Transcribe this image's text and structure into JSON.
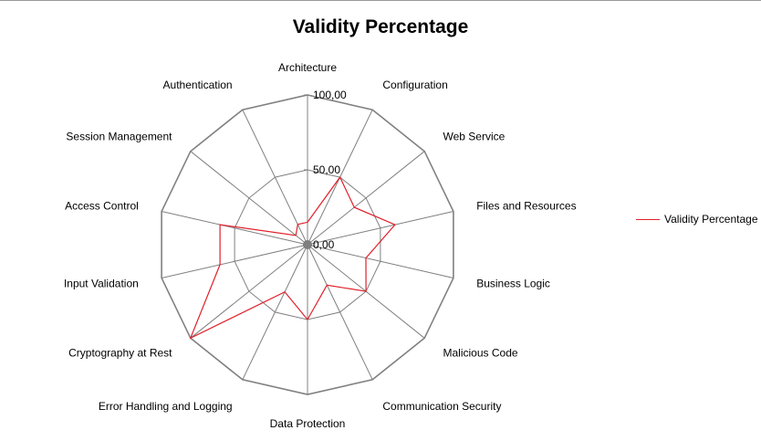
{
  "chart_data": {
    "type": "radar",
    "title": "Validity Percentage",
    "categories": [
      "Architecture",
      "Configuration",
      "Web Service",
      "Files and Resources",
      "Business Logic",
      "Malicious Code",
      "Communication Security",
      "Data Protection",
      "Error Handling and Logging",
      "Cryptography at Rest",
      "Input Validation",
      "Access Control",
      "Session Management",
      "Authentication"
    ],
    "series": [
      {
        "name": "Validity Percentage",
        "color": "#e0202a",
        "values": [
          15,
          50,
          40,
          60,
          40,
          50,
          30,
          50,
          35,
          100,
          60,
          60,
          10,
          15
        ]
      }
    ],
    "rlim": [
      0,
      100
    ],
    "ticks": [
      "0,00",
      "50,00",
      "100,00"
    ],
    "legend_position": "right",
    "grid_color": "#808080"
  }
}
